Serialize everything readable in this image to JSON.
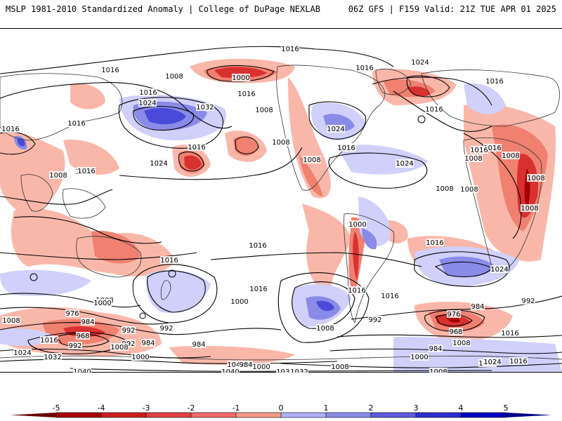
{
  "header": {
    "left": "MSLP 1981-2010 Standardized Anomaly | College of DuPage NEXLAB",
    "right": "06Z GFS | F159 Valid: 21Z TUE APR 01 2025"
  },
  "colorbar": {
    "ticks": [
      "-5",
      "-4",
      "-3",
      "-2",
      "-1",
      "0",
      "1",
      "2",
      "3",
      "4",
      "5"
    ],
    "negative_colors": [
      "#a50000",
      "#cc1f1f",
      "#e34040",
      "#f26a6a",
      "#f79a8a",
      "#fccfc4"
    ],
    "positive_colors": [
      "#d6d6ff",
      "#b0b0f5",
      "#8a8ae8",
      "#5c5cdc",
      "#2e2ed0",
      "#0000c0"
    ]
  },
  "isobar_labels": [
    {
      "text": "1016"
    },
    {
      "text": "1016"
    },
    {
      "text": "1008"
    },
    {
      "text": "1000"
    },
    {
      "text": "1016"
    },
    {
      "text": "1024"
    },
    {
      "text": "1032"
    },
    {
      "text": "1016"
    },
    {
      "text": "1008"
    },
    {
      "text": "1016"
    },
    {
      "text": "1024"
    },
    {
      "text": "1016"
    },
    {
      "text": "1016"
    },
    {
      "text": "1008"
    },
    {
      "text": "1016"
    },
    {
      "text": "1024"
    },
    {
      "text": "1000"
    },
    {
      "text": "1008"
    },
    {
      "text": "1016"
    },
    {
      "text": "1016"
    },
    {
      "text": "1024"
    },
    {
      "text": "1016"
    },
    {
      "text": "1008"
    },
    {
      "text": "1008"
    },
    {
      "text": "1008"
    },
    {
      "text": "1008"
    },
    {
      "text": "1016"
    },
    {
      "text": "1008"
    },
    {
      "text": "1008"
    },
    {
      "text": "1008"
    },
    {
      "text": "1016"
    },
    {
      "text": "1016"
    },
    {
      "text": "1024"
    },
    {
      "text": "1016"
    },
    {
      "text": "1024"
    },
    {
      "text": "1016"
    },
    {
      "text": "1008"
    },
    {
      "text": "1000"
    },
    {
      "text": "1016"
    },
    {
      "text": "1024"
    },
    {
      "text": "1016"
    },
    {
      "text": "1016"
    },
    {
      "text": "1000"
    },
    {
      "text": "1016"
    },
    {
      "text": "1008"
    },
    {
      "text": "1008"
    },
    {
      "text": "1016"
    },
    {
      "text": "976"
    },
    {
      "text": "984"
    },
    {
      "text": "992"
    },
    {
      "text": "1008"
    },
    {
      "text": "992"
    },
    {
      "text": "1000"
    },
    {
      "text": "976"
    },
    {
      "text": "984"
    },
    {
      "text": "968"
    },
    {
      "text": "992"
    },
    {
      "text": "984"
    },
    {
      "text": "1016"
    },
    {
      "text": "968"
    },
    {
      "text": "992"
    },
    {
      "text": "1008"
    },
    {
      "text": "984"
    },
    {
      "text": "1024"
    },
    {
      "text": "1032"
    },
    {
      "text": "1000"
    },
    {
      "text": "984"
    },
    {
      "text": "1008"
    },
    {
      "text": "1000"
    },
    {
      "text": "992"
    },
    {
      "text": "1016"
    },
    {
      "text": "1008"
    },
    {
      "text": "1040"
    },
    {
      "text": "1040"
    },
    {
      "text": "1032"
    },
    {
      "text": "1040"
    },
    {
      "text": "1032"
    },
    {
      "text": "992"
    },
    {
      "text": "1008"
    },
    {
      "text": "1000"
    },
    {
      "text": "984"
    },
    {
      "text": "1024"
    },
    {
      "text": "1016"
    },
    {
      "text": "1008"
    }
  ]
}
